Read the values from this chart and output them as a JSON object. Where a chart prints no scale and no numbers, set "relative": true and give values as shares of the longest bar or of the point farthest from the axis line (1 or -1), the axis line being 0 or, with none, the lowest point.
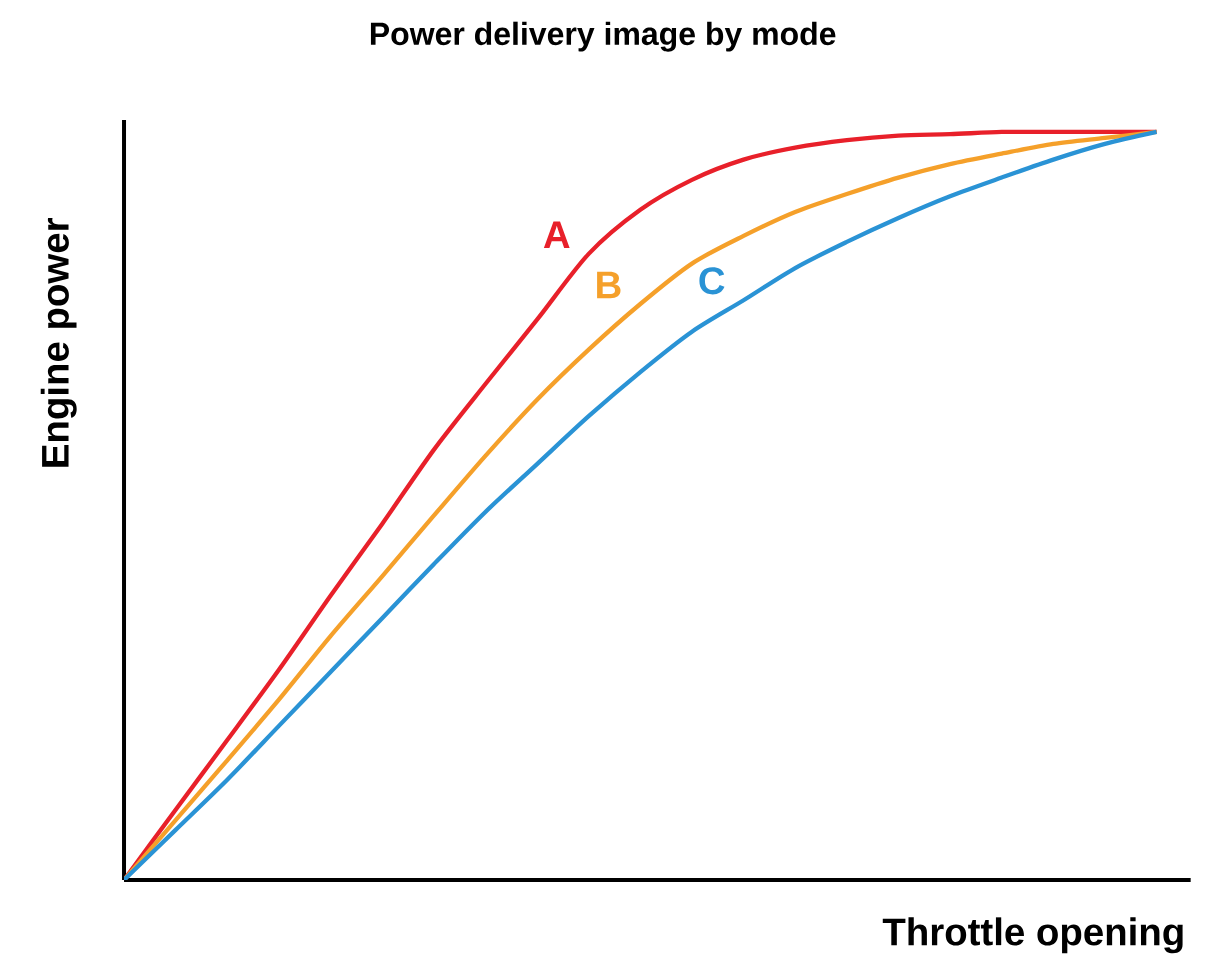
{
  "chart_data": {
    "type": "line",
    "title": "Power delivery image by mode",
    "xlabel": "Throttle opening",
    "ylabel": "Engine power",
    "relative": true,
    "marker": "none",
    "line_style": "solid",
    "categories": [
      null,
      null,
      null,
      null,
      null,
      null,
      null,
      null,
      null,
      null,
      null,
      null,
      null,
      null,
      null,
      null,
      null,
      null,
      null,
      null,
      null
    ],
    "series": [
      {
        "name": "A",
        "color": "#e8202a",
        "values": [
          0,
          0.094,
          0.187,
          0.281,
          0.38,
          0.476,
          0.575,
          0.663,
          0.749,
          0.837,
          0.896,
          0.936,
          0.963,
          0.979,
          0.989,
          0.995,
          0.997,
          1,
          1,
          1,
          1
        ]
      },
      {
        "name": "B",
        "color": "#f5a02a",
        "values": [
          0,
          0.08,
          0.16,
          0.241,
          0.326,
          0.406,
          0.487,
          0.567,
          0.642,
          0.709,
          0.77,
          0.824,
          0.861,
          0.893,
          0.917,
          0.939,
          0.957,
          0.971,
          0.984,
          0.992,
          1
        ]
      },
      {
        "name": "C",
        "color": "#2a93d5",
        "values": [
          0,
          0.067,
          0.134,
          0.206,
          0.278,
          0.35,
          0.422,
          0.492,
          0.556,
          0.62,
          0.679,
          0.733,
          0.775,
          0.818,
          0.853,
          0.885,
          0.914,
          0.939,
          0.963,
          0.984,
          1
        ]
      }
    ]
  }
}
